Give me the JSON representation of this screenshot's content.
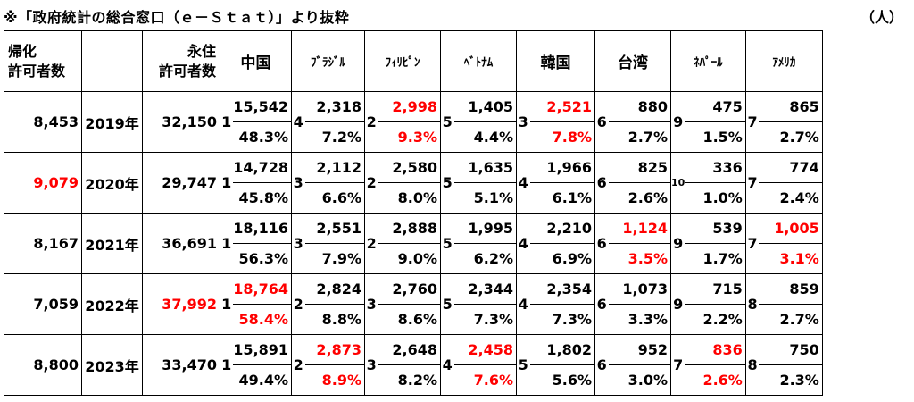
{
  "title": "※「政府統計の総合窓口（ｅ－Ｓｔａｔ）」より抜粋",
  "unit": "（人）",
  "headers": {
    "naturalization": [
      "帰化",
      "許可者数"
    ],
    "permanent": [
      "永住",
      "許可者数"
    ],
    "countries": [
      "中国",
      "ﾌﾞﾗｼﾞﾙ",
      "ﾌｨﾘﾋﾟﾝ",
      "ﾍﾞﾄﾅﾑ",
      "韓国",
      "台湾",
      "ﾈﾊﾟｰﾙ",
      "ｱﾒﾘｶ"
    ]
  },
  "rows": [
    {
      "naturalization": "8,453",
      "naturalization_red": false,
      "year": "2019年",
      "permanent": "32,150",
      "permanent_red": false,
      "cells": [
        {
          "rank": "1",
          "value": "15,542",
          "pct": "48.3%",
          "red": false
        },
        {
          "rank": "4",
          "value": "2,318",
          "pct": "7.2%",
          "red": false
        },
        {
          "rank": "2",
          "value": "2,998",
          "pct": "9.3%",
          "red": true
        },
        {
          "rank": "5",
          "value": "1,405",
          "pct": "4.4%",
          "red": false
        },
        {
          "rank": "3",
          "value": "2,521",
          "pct": "7.8%",
          "red": true
        },
        {
          "rank": "6",
          "value": "880",
          "pct": "2.7%",
          "red": false
        },
        {
          "rank": "9",
          "value": "475",
          "pct": "1.5%",
          "red": false
        },
        {
          "rank": "7",
          "value": "865",
          "pct": "2.7%",
          "red": false
        }
      ]
    },
    {
      "naturalization": "9,079",
      "naturalization_red": true,
      "year": "2020年",
      "permanent": "29,747",
      "permanent_red": false,
      "cells": [
        {
          "rank": "1",
          "value": "14,728",
          "pct": "45.8%",
          "red": false
        },
        {
          "rank": "3",
          "value": "2,112",
          "pct": "6.6%",
          "red": false
        },
        {
          "rank": "2",
          "value": "2,580",
          "pct": "8.0%",
          "red": false
        },
        {
          "rank": "5",
          "value": "1,635",
          "pct": "5.1%",
          "red": false
        },
        {
          "rank": "4",
          "value": "1,966",
          "pct": "6.1%",
          "red": false
        },
        {
          "rank": "6",
          "value": "825",
          "pct": "2.6%",
          "red": false
        },
        {
          "rank": "10",
          "value": "336",
          "pct": "1.0%",
          "red": false
        },
        {
          "rank": "7",
          "value": "774",
          "pct": "2.4%",
          "red": false
        }
      ]
    },
    {
      "naturalization": "8,167",
      "naturalization_red": false,
      "year": "2021年",
      "permanent": "36,691",
      "permanent_red": false,
      "cells": [
        {
          "rank": "1",
          "value": "18,116",
          "pct": "56.3%",
          "red": false
        },
        {
          "rank": "3",
          "value": "2,551",
          "pct": "7.9%",
          "red": false
        },
        {
          "rank": "2",
          "value": "2,888",
          "pct": "9.0%",
          "red": false
        },
        {
          "rank": "5",
          "value": "1,995",
          "pct": "6.2%",
          "red": false
        },
        {
          "rank": "4",
          "value": "2,210",
          "pct": "6.9%",
          "red": false
        },
        {
          "rank": "6",
          "value": "1,124",
          "pct": "3.5%",
          "red": true
        },
        {
          "rank": "9",
          "value": "539",
          "pct": "1.7%",
          "red": false
        },
        {
          "rank": "7",
          "value": "1,005",
          "pct": "3.1%",
          "red": true
        }
      ]
    },
    {
      "naturalization": "7,059",
      "naturalization_red": false,
      "year": "2022年",
      "permanent": "37,992",
      "permanent_red": true,
      "cells": [
        {
          "rank": "1",
          "value": "18,764",
          "pct": "58.4%",
          "red": true
        },
        {
          "rank": "2",
          "value": "2,824",
          "pct": "8.8%",
          "red": false
        },
        {
          "rank": "3",
          "value": "2,760",
          "pct": "8.6%",
          "red": false
        },
        {
          "rank": "5",
          "value": "2,344",
          "pct": "7.3%",
          "red": false
        },
        {
          "rank": "4",
          "value": "2,354",
          "pct": "7.3%",
          "red": false
        },
        {
          "rank": "6",
          "value": "1,073",
          "pct": "3.3%",
          "red": false
        },
        {
          "rank": "9",
          "value": "715",
          "pct": "2.2%",
          "red": false
        },
        {
          "rank": "8",
          "value": "859",
          "pct": "2.7%",
          "red": false
        }
      ]
    },
    {
      "naturalization": "8,800",
      "naturalization_red": false,
      "year": "2023年",
      "permanent": "33,470",
      "permanent_red": false,
      "cells": [
        {
          "rank": "1",
          "value": "15,891",
          "pct": "49.4%",
          "red": false
        },
        {
          "rank": "2",
          "value": "2,873",
          "pct": "8.9%",
          "red": true
        },
        {
          "rank": "3",
          "value": "2,648",
          "pct": "8.2%",
          "red": false
        },
        {
          "rank": "4",
          "value": "2,458",
          "pct": "7.6%",
          "red": true
        },
        {
          "rank": "5",
          "value": "1,802",
          "pct": "5.6%",
          "red": false
        },
        {
          "rank": "6",
          "value": "952",
          "pct": "3.0%",
          "red": false
        },
        {
          "rank": "7",
          "value": "836",
          "pct": "2.6%",
          "red": true
        },
        {
          "rank": "8",
          "value": "750",
          "pct": "2.3%",
          "red": false
        }
      ]
    }
  ],
  "colors": {
    "highlight": "#ff0000",
    "text": "#000000",
    "border": "#000000"
  }
}
